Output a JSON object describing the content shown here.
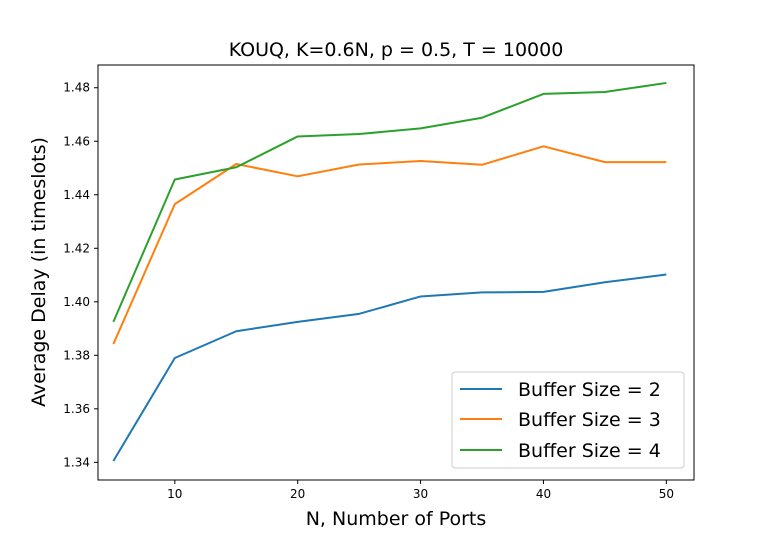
{
  "chart_data": {
    "type": "line",
    "title": "KOUQ, K=0.6N, p = 0.5, T = 10000",
    "xlabel": "N, Number of Ports",
    "ylabel": "Average Delay (in timeslots)",
    "xlim": [
      3.75,
      52.25
    ],
    "ylim": [
      1.3334,
      1.4885
    ],
    "xticks": [
      10,
      20,
      30,
      40,
      50
    ],
    "xtick_labels": [
      "10",
      "20",
      "30",
      "40",
      "50"
    ],
    "yticks": [
      1.34,
      1.36,
      1.38,
      1.4,
      1.42,
      1.44,
      1.46,
      1.48
    ],
    "ytick_labels": [
      "1.34",
      "1.36",
      "1.38",
      "1.40",
      "1.42",
      "1.44",
      "1.46",
      "1.48"
    ],
    "grid": false,
    "legend_position": "bottom-right",
    "x": [
      5,
      10,
      15,
      20,
      25,
      30,
      35,
      40,
      45,
      50
    ],
    "series": [
      {
        "name": "Buffer Size = 2",
        "color": "#1f77b4",
        "values": [
          1.3405,
          1.379,
          1.389,
          1.3925,
          1.3955,
          1.402,
          1.4035,
          1.4037,
          1.4073,
          1.4102
        ]
      },
      {
        "name": "Buffer Size = 3",
        "color": "#ff7f0e",
        "values": [
          1.3842,
          1.4365,
          1.4515,
          1.4469,
          1.4513,
          1.4526,
          1.4512,
          1.4581,
          1.4522,
          1.4522
        ]
      },
      {
        "name": "Buffer Size = 4",
        "color": "#2ca02c",
        "values": [
          1.3925,
          1.4457,
          1.4503,
          1.4618,
          1.4627,
          1.4648,
          1.4688,
          1.4777,
          1.4784,
          1.4818
        ]
      }
    ]
  }
}
